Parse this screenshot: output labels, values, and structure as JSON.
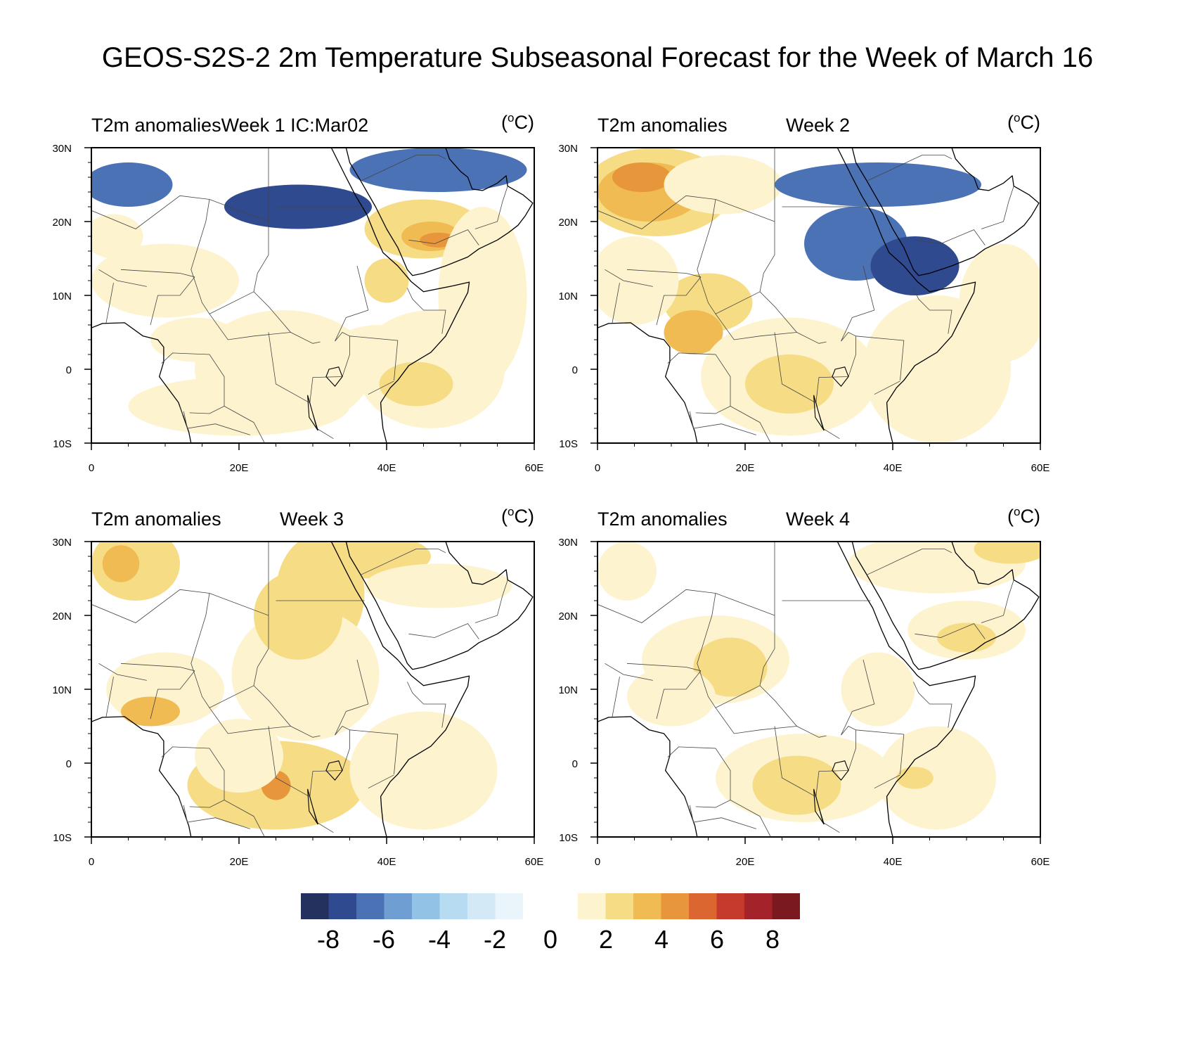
{
  "title": "GEOS-S2S-2 2m Temperature Subseasonal Forecast for the Week of March 16",
  "panels": [
    {
      "left": "T2m anomaliesWeek 1 IC:Mar02",
      "mid": "",
      "units_base": "(",
      "units_sup": "o",
      "units_rest": "C)"
    },
    {
      "left": "T2m anomalies",
      "mid": "Week 2",
      "units_base": "(",
      "units_sup": "o",
      "units_rest": "C)"
    },
    {
      "left": "T2m anomalies",
      "mid": "Week 3",
      "units_base": "(",
      "units_sup": "o",
      "units_rest": "C)"
    },
    {
      "left": "T2m anomalies",
      "mid": "Week 4",
      "units_base": "(",
      "units_sup": "o",
      "units_rest": "C)"
    }
  ],
  "axes": {
    "lat_ticks": [
      "30N",
      "20N",
      "10N",
      "0",
      "10S"
    ],
    "lon_ticks": [
      "0",
      "20E",
      "40E",
      "60E"
    ],
    "lat_range": [
      -10,
      30
    ],
    "lon_range": [
      0,
      60
    ]
  },
  "colorbar": {
    "labels": [
      "-8",
      "-6",
      "-4",
      "-2",
      "0",
      "2",
      "4",
      "6",
      "8"
    ],
    "neg_colors": [
      "#24305e",
      "#2f4a8f",
      "#4a72b5",
      "#6f9fd2",
      "#92c2e6",
      "#b7dcf2",
      "#d3e9f6",
      "#eaf5fb"
    ],
    "pos_colors": [
      "#fdf4cf",
      "#f6dc85",
      "#f0bb52",
      "#e8963b",
      "#dc6630",
      "#c53a2c",
      "#a4232a",
      "#7b1a1e"
    ]
  }
}
